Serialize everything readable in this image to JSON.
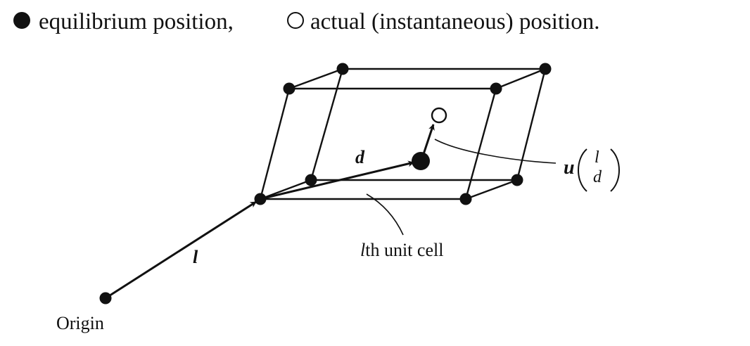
{
  "caption": {
    "filled_marker_text": "equilibrium position,",
    "hollow_marker_text": "actual (instantaneous) position."
  },
  "labels": {
    "origin": "Origin",
    "lattice_vector": "l",
    "basis_vector": "d",
    "unit_cell": "th unit cell",
    "unit_cell_prefix": "l",
    "displacement_symbol": "u",
    "displacement_top": "l",
    "displacement_bottom": "d"
  },
  "colors": {
    "ink": "#111111",
    "background": "#ffffff"
  }
}
